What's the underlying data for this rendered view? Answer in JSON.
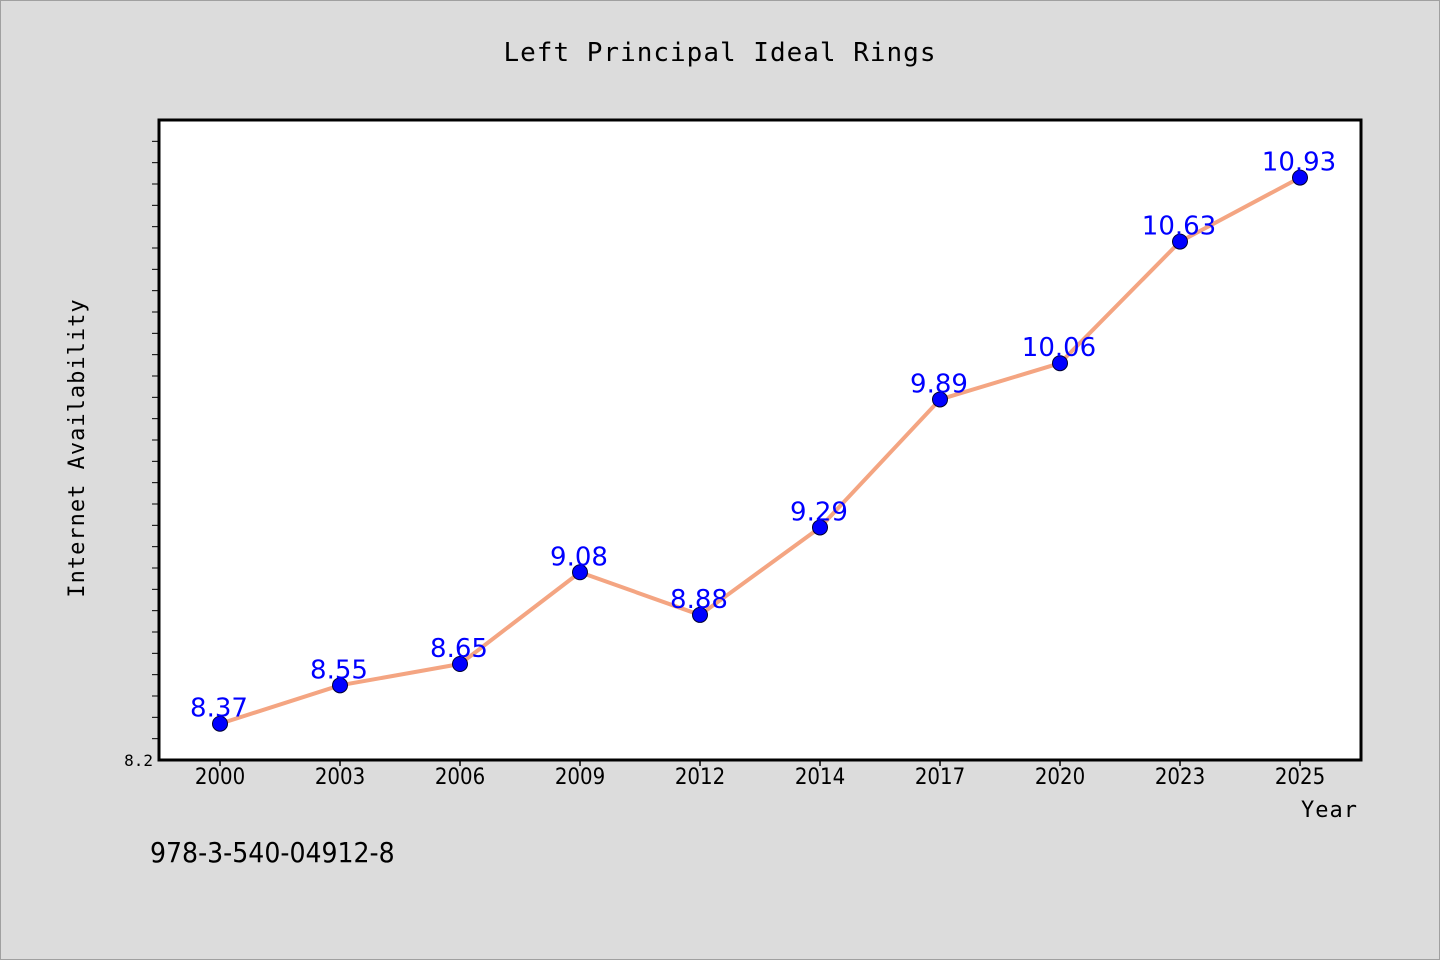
{
  "chart_data": {
    "type": "line",
    "title": "Left Principal Ideal Rings",
    "xlabel": "Year",
    "ylabel": "Internet Availability",
    "ylim": [
      8.2,
      11.2
    ],
    "y_min_label": "8.2",
    "categories": [
      "2000",
      "2003",
      "2006",
      "2009",
      "2012",
      "2014",
      "2017",
      "2020",
      "2023",
      "2025"
    ],
    "series": [
      {
        "values": [
          8.37,
          8.55,
          8.65,
          9.08,
          8.88,
          9.29,
          9.89,
          10.06,
          10.63,
          10.93
        ],
        "labels": [
          "8.37",
          "8.55",
          "8.65",
          "9.08",
          "8.88",
          "9.29",
          "9.89",
          "10.06",
          "10.63",
          "10.93"
        ]
      }
    ],
    "grid": false,
    "legend": "none",
    "colors": {
      "line": "#f4a582",
      "marker": "#0000ff",
      "data_label": "#0000ff"
    },
    "note": "978-3-540-04912-8"
  }
}
